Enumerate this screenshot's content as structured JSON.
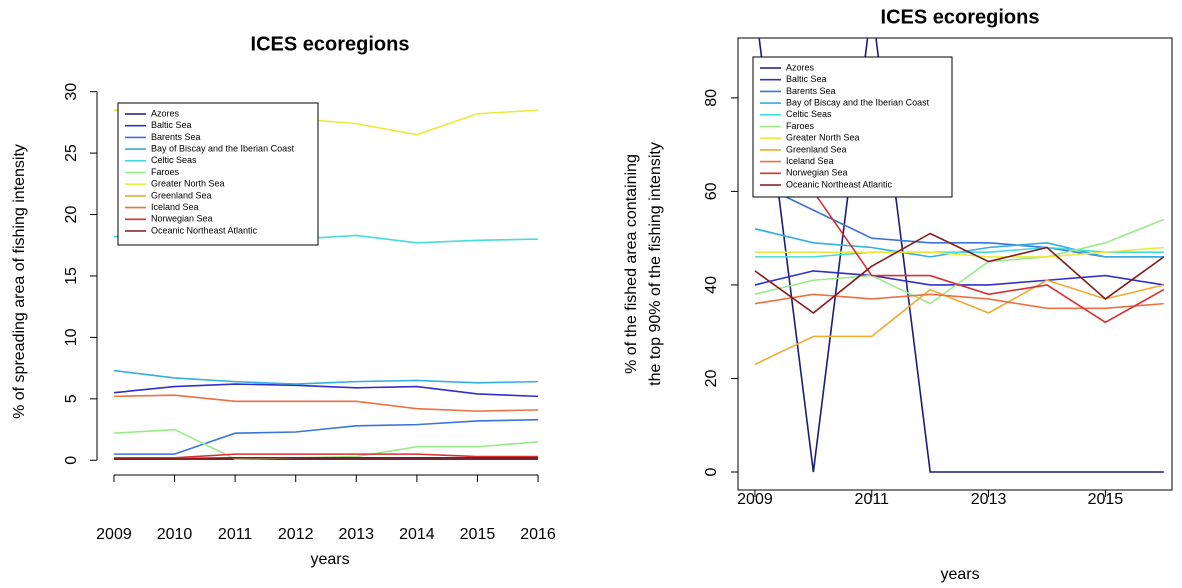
{
  "chart_data": [
    {
      "type": "line",
      "title": "ICES ecoregions",
      "x_label": "years",
      "y_label": "% of spreading area of fishing intensity",
      "x": [
        2009,
        2010,
        2011,
        2012,
        2013,
        2014,
        2015,
        2016
      ],
      "xlim": [
        2008.72,
        2016.28
      ],
      "xticks": [
        2009,
        2010,
        2011,
        2012,
        2013,
        2014,
        2015,
        2016
      ],
      "ylim": [
        -1.2,
        30.3
      ],
      "yticks": [
        0,
        5,
        10,
        15,
        20,
        25,
        30
      ],
      "box": false,
      "legend": "top-left",
      "series": [
        {
          "name": "Azores",
          "color": "#1c1c7a",
          "values": [
            0.1,
            0.1,
            0.1,
            0.1,
            0.1,
            0.1,
            0.1,
            0.1
          ]
        },
        {
          "name": "Baltic Sea",
          "color": "#3030c8",
          "values": [
            5.5,
            6.0,
            6.2,
            6.1,
            5.9,
            6.0,
            5.4,
            5.2
          ]
        },
        {
          "name": "Barents Sea",
          "color": "#3a74d8",
          "values": [
            0.5,
            0.5,
            2.2,
            2.3,
            2.8,
            2.9,
            3.2,
            3.3
          ]
        },
        {
          "name": "Bay of Biscay and the Iberian Coast",
          "color": "#35aee0",
          "values": [
            7.3,
            6.7,
            6.4,
            6.2,
            6.4,
            6.5,
            6.3,
            6.4
          ]
        },
        {
          "name": "Celtic Seas",
          "color": "#44dcdc",
          "values": [
            18.2,
            18.0,
            17.9,
            18.0,
            18.3,
            17.7,
            17.9,
            18.0
          ]
        },
        {
          "name": "Faroes",
          "color": "#9aea8a",
          "values": [
            2.2,
            2.5,
            0.1,
            0.2,
            0.3,
            1.1,
            1.1,
            1.5
          ]
        },
        {
          "name": "Greater North Sea",
          "color": "#eaea3c",
          "values": [
            28.5,
            28.2,
            28.0,
            27.8,
            27.4,
            26.5,
            28.2,
            28.5
          ]
        },
        {
          "name": "Greenland Sea",
          "color": "#f0aa30",
          "values": [
            0.2,
            0.2,
            0.2,
            0.2,
            0.2,
            0.2,
            0.2,
            0.2
          ]
        },
        {
          "name": "Iceland Sea",
          "color": "#ec7040",
          "values": [
            5.2,
            5.3,
            4.8,
            4.8,
            4.8,
            4.2,
            4.0,
            4.1
          ]
        },
        {
          "name": "Norwegian Sea",
          "color": "#d83030",
          "values": [
            0.2,
            0.2,
            0.5,
            0.5,
            0.5,
            0.5,
            0.3,
            0.3
          ]
        },
        {
          "name": "Oceanic Northeast Atlantic",
          "color": "#851a1a",
          "values": [
            0.1,
            0.1,
            0.2,
            0.2,
            0.2,
            0.2,
            0.2,
            0.2
          ]
        }
      ]
    },
    {
      "type": "line",
      "title": "ICES ecoregions",
      "x_label": "years",
      "y_label": [
        "% of the fished area containing",
        "the top 90% of the fishing intensity"
      ],
      "x": [
        2009,
        2010,
        2011,
        2012,
        2013,
        2014,
        2015,
        2016
      ],
      "xlim": [
        2008.71,
        2016.14
      ],
      "xticks": [
        2009,
        2011,
        2013,
        2015
      ],
      "ylim": [
        -3.85,
        92.8
      ],
      "yticks": [
        0,
        20,
        40,
        60,
        80
      ],
      "box": true,
      "legend": "top-left",
      "series": [
        {
          "name": "Azores",
          "color": "#1c1c7a",
          "values": [
            100,
            0,
            100,
            0,
            0,
            0,
            0,
            0
          ]
        },
        {
          "name": "Baltic Sea",
          "color": "#3030c8",
          "values": [
            40,
            43,
            42,
            40,
            40,
            41,
            42,
            40
          ]
        },
        {
          "name": "Barents Sea",
          "color": "#3a74d8",
          "values": [
            62,
            56,
            50,
            49,
            49,
            48,
            46,
            46
          ]
        },
        {
          "name": "Bay of Biscay and the Iberian Coast",
          "color": "#35aee0",
          "values": [
            52,
            49,
            48,
            46,
            48,
            49,
            46,
            46
          ]
        },
        {
          "name": "Celtic Seas",
          "color": "#44dcdc",
          "values": [
            46,
            46,
            47,
            47,
            47,
            48,
            47,
            47
          ]
        },
        {
          "name": "Faroes",
          "color": "#9aea8a",
          "values": [
            38,
            41,
            42,
            36,
            45,
            46,
            49,
            54
          ]
        },
        {
          "name": "Greater North Sea",
          "color": "#eaea3c",
          "values": [
            47,
            47,
            47,
            47,
            46,
            46,
            47,
            48
          ]
        },
        {
          "name": "Greenland Sea",
          "color": "#f0aa30",
          "values": [
            23,
            29,
            29,
            39,
            34,
            41,
            37,
            40
          ]
        },
        {
          "name": "Iceland Sea",
          "color": "#ec7040",
          "values": [
            36,
            38,
            37,
            38,
            37,
            35,
            35,
            36
          ]
        },
        {
          "name": "Norwegian Sea",
          "color": "#d83030",
          "values": [
            80,
            60,
            42,
            42,
            38,
            40,
            32,
            39
          ]
        },
        {
          "name": "Oceanic Northeast Atlantic",
          "color": "#851a1a",
          "values": [
            43,
            34,
            44,
            51,
            45,
            48,
            37,
            46
          ]
        }
      ]
    }
  ]
}
